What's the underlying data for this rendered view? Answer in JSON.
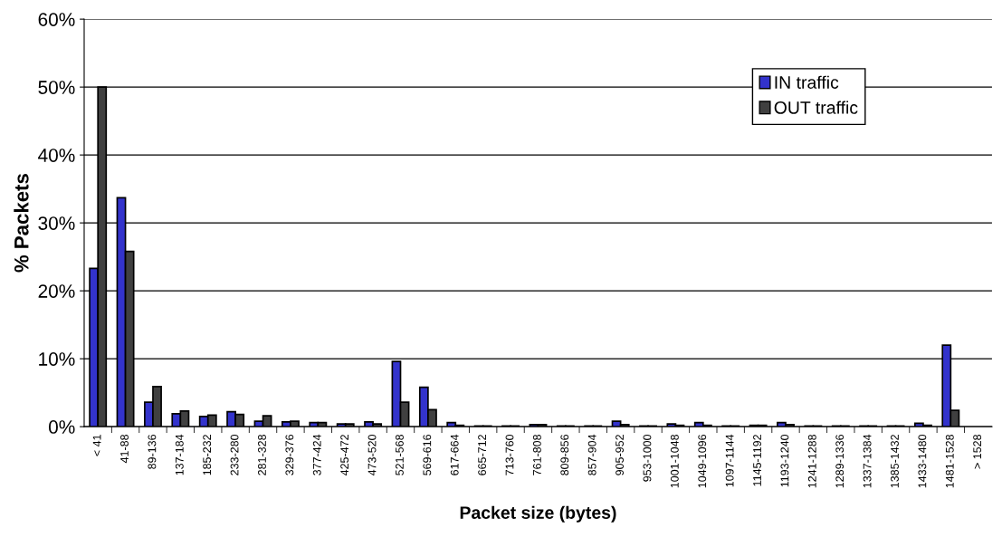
{
  "chart_data": {
    "type": "bar",
    "xlabel": "Packet size (bytes)",
    "ylabel": "% Packets",
    "categories": [
      "< 41",
      "41-88",
      "89-136",
      "137-184",
      "185-232",
      "233-280",
      "281-328",
      "329-376",
      "377-424",
      "425-472",
      "473-520",
      "521-568",
      "569-616",
      "617-664",
      "665-712",
      "713-760",
      "761-808",
      "809-856",
      "857-904",
      "905-952",
      "953-1000",
      "1001-1048",
      "1049-1096",
      "1097-1144",
      "1145-1192",
      "1193-1240",
      "1241-1288",
      "1289-1336",
      "1337-1384",
      "1385-1432",
      "1433-1480",
      "1481-1528",
      "> 1528"
    ],
    "series": [
      {
        "name": "IN traffic",
        "color": "#3333cc",
        "values": [
          23.3,
          33.7,
          3.6,
          1.9,
          1.5,
          2.2,
          0.8,
          0.7,
          0.6,
          0.4,
          0.7,
          9.6,
          5.8,
          0.6,
          0.1,
          0.1,
          0.3,
          0.1,
          0.1,
          0.8,
          0.1,
          0.4,
          0.6,
          0.1,
          0.2,
          0.6,
          0.1,
          0.1,
          0.1,
          0.1,
          0.5,
          12.0,
          null
        ]
      },
      {
        "name": "OUT traffic",
        "color": "#404040",
        "values": [
          50.0,
          25.8,
          5.9,
          2.3,
          1.7,
          1.8,
          1.6,
          0.8,
          0.6,
          0.4,
          0.4,
          3.6,
          2.5,
          0.2,
          0.1,
          0.1,
          0.3,
          0.1,
          0.1,
          0.3,
          0.1,
          0.2,
          0.2,
          0.1,
          0.2,
          0.3,
          0.1,
          0.1,
          0.1,
          0.1,
          0.2,
          2.4,
          null
        ]
      }
    ],
    "ylim": [
      0,
      60
    ],
    "yticks": [
      {
        "value": 0,
        "label": "0%"
      },
      {
        "value": 10,
        "label": "10%"
      },
      {
        "value": 20,
        "label": "20%"
      },
      {
        "value": 30,
        "label": "30%"
      },
      {
        "value": 40,
        "label": "40%"
      },
      {
        "value": 50,
        "label": "50%"
      },
      {
        "value": 60,
        "label": "60%"
      }
    ],
    "grid": "y",
    "legend": "top right"
  }
}
